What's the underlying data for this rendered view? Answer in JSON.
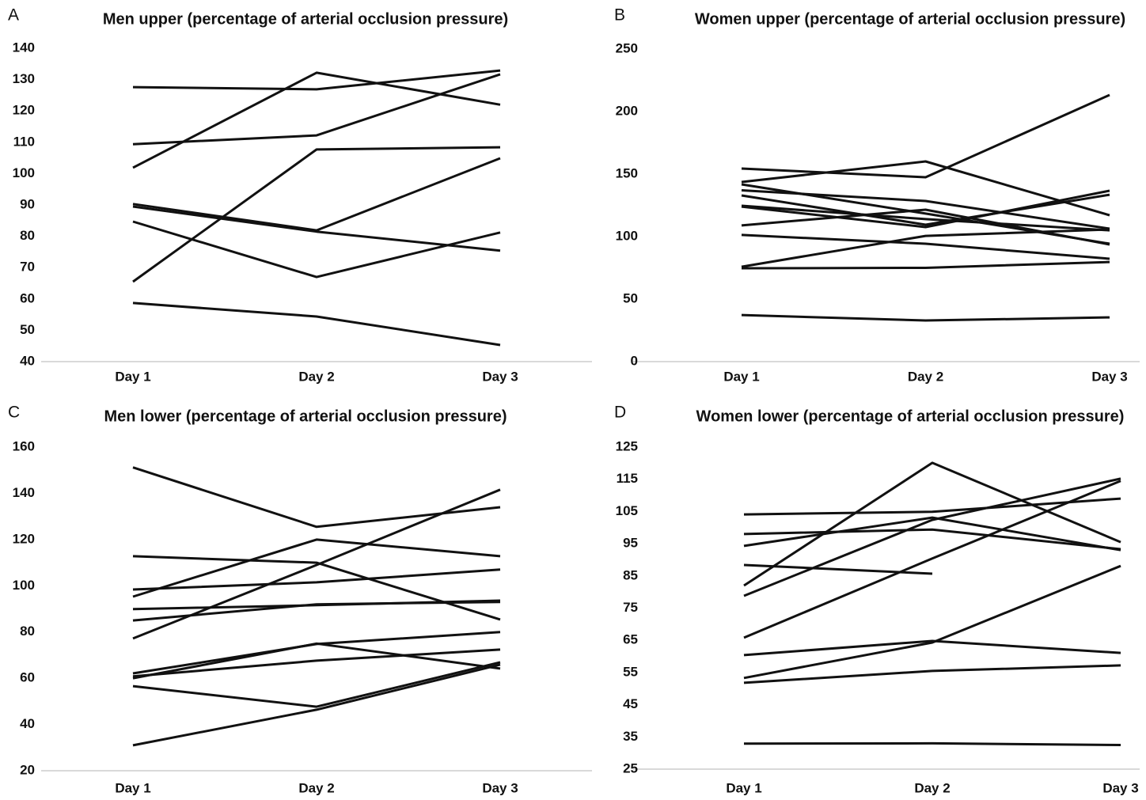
{
  "chart_data": [
    {
      "type": "line",
      "panel": "A",
      "title": "Men upper (percentage of arterial occlusion pressure)",
      "color": "#111111",
      "categories": [
        "Day 1",
        "Day 2",
        "Day 3"
      ],
      "ylim": [
        40,
        140
      ],
      "yticks": [
        40,
        50,
        60,
        70,
        80,
        90,
        100,
        110,
        120,
        130,
        140
      ],
      "series": [
        {
          "values": [
            127.6,
            126.9,
            132.9
          ]
        },
        {
          "values": [
            101.9,
            132.2,
            122
          ]
        },
        {
          "values": [
            109.4,
            112.2,
            131.7
          ]
        },
        {
          "values": [
            65.5,
            107.7,
            108.4
          ]
        },
        {
          "values": [
            90.3,
            81.9,
            104.9
          ]
        },
        {
          "values": [
            89.5,
            81.5,
            75.4
          ]
        },
        {
          "values": [
            84.7,
            67,
            81.2
          ]
        },
        {
          "values": [
            58.7,
            54.4,
            45.3
          ]
        }
      ]
    },
    {
      "type": "line",
      "panel": "B",
      "title": "Women upper (percentage of arterial occlusion pressure)",
      "color": "#111111",
      "categories": [
        "Day 1",
        "Day 2",
        "Day 3"
      ],
      "ylim": [
        0,
        250
      ],
      "yticks": [
        0,
        50,
        100,
        150,
        200,
        250
      ],
      "series": [
        {
          "values": [
            154.4,
            147.5,
            213.3
          ]
        },
        {
          "values": [
            143.7,
            160.1,
            117.1
          ]
        },
        {
          "values": [
            141.8,
            118.4,
            94.3
          ]
        },
        {
          "values": [
            137,
            128.5,
            106.3
          ]
        },
        {
          "values": [
            132.9,
            109.5,
            133.5
          ]
        },
        {
          "values": [
            124.7,
            114,
            105
          ]
        },
        {
          "values": [
            124,
            107.6,
            136.7
          ]
        },
        {
          "values": [
            108.9,
            121.5,
            93.7
          ]
        },
        {
          "values": [
            101.3,
            94.3,
            82.3
          ]
        },
        {
          "values": [
            75.9,
            100.6,
            105.7
          ]
        },
        {
          "values": [
            74.7,
            75,
            79.7
          ]
        },
        {
          "values": [
            37.3,
            32.9,
            35.4
          ]
        }
      ]
    },
    {
      "type": "line",
      "panel": "C",
      "title": "Men lower (percentage of arterial occlusion pressure)",
      "color": "#111111",
      "categories": [
        "Day 1",
        "Day 2",
        "Day 3"
      ],
      "ylim": [
        20,
        160
      ],
      "yticks": [
        20,
        40,
        60,
        80,
        100,
        120,
        140,
        160
      ],
      "series": [
        {
          "values": [
            151.2,
            125.5,
            134
          ]
        },
        {
          "values": [
            77.2,
            109,
            141.6
          ]
        },
        {
          "values": [
            95.3,
            120,
            112.8
          ]
        },
        {
          "values": [
            112.8,
            110,
            85.4
          ]
        },
        {
          "values": [
            98.4,
            101.5,
            107
          ]
        },
        {
          "values": [
            89.9,
            91.6,
            93.6
          ]
        },
        {
          "values": [
            85,
            92,
            93
          ]
        },
        {
          "values": [
            62.1,
            74.8,
            80
          ]
        },
        {
          "values": [
            60.8,
            67.6,
            72.4
          ]
        },
        {
          "values": [
            60,
            75,
            64.2
          ]
        },
        {
          "values": [
            56.6,
            47.7,
            66.9
          ]
        },
        {
          "values": [
            31,
            46.4,
            65.9
          ]
        }
      ]
    },
    {
      "type": "line",
      "panel": "D",
      "title": "Women lower (percentage of arterial occlusion pressure)",
      "color": "#111111",
      "categories": [
        "Day 1",
        "Day 2",
        "Day 3"
      ],
      "ylim": [
        25,
        125
      ],
      "yticks": [
        25,
        35,
        45,
        55,
        65,
        75,
        85,
        95,
        105,
        115,
        125
      ],
      "series": [
        {
          "values": [
            104.1,
            104.9,
            109
          ]
        },
        {
          "values": [
            98,
            99.4,
            93.3
          ]
        },
        {
          "values": [
            94.3,
            103.1,
            93
          ]
        },
        {
          "values": [
            82,
            120.1,
            95.5
          ]
        },
        {
          "values": [
            78.8,
            102.4,
            115.2
          ]
        },
        {
          "values": [
            88.4,
            85.7,
            null
          ]
        },
        {
          "values": [
            65.8,
            90.4,
            114.5
          ]
        },
        {
          "values": [
            60.4,
            64.8,
            61.1
          ]
        },
        {
          "values": [
            53.3,
            64.3,
            88.1
          ]
        },
        {
          "values": [
            51.8,
            55.5,
            57.2
          ]
        },
        {
          "values": [
            32.9,
            33,
            32.5
          ]
        }
      ]
    }
  ]
}
